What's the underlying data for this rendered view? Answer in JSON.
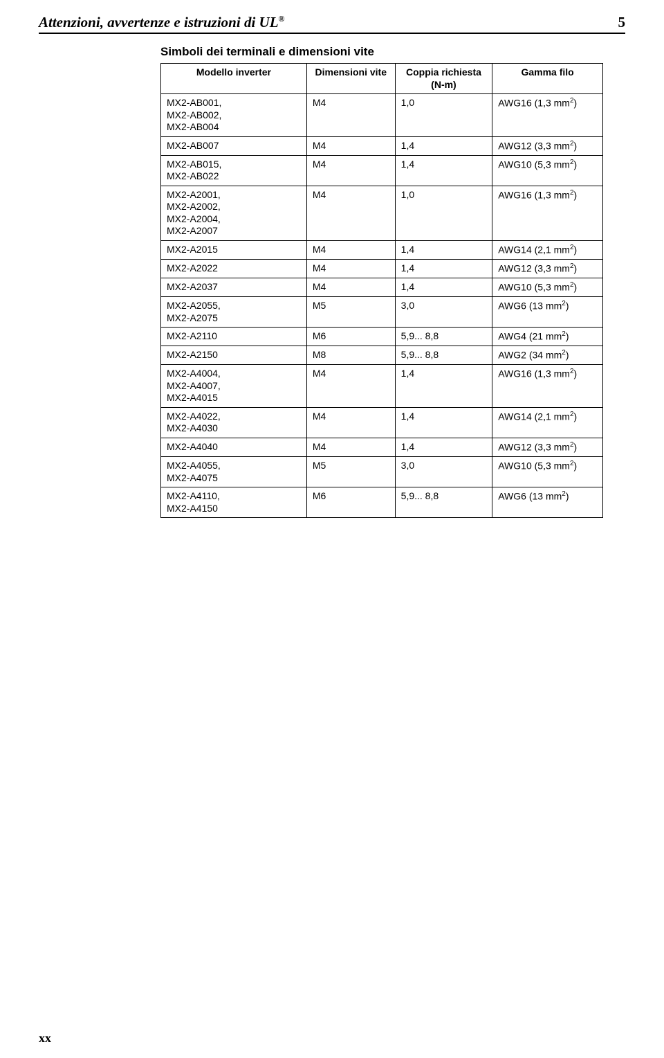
{
  "header": {
    "title_main": "Attenzioni, avvertenze e istruzioni di UL",
    "title_sup": "®",
    "page_number": "5"
  },
  "footer": {
    "mark": "xx"
  },
  "table": {
    "title": "Simboli dei terminali e dimensioni vite",
    "columns": [
      "Modello inverter",
      "Dimensioni vite",
      "Coppia richiesta (N-m)",
      "Gamma filo"
    ],
    "rows": [
      {
        "model": "MX2-AB001,\nMX2-AB002,\nMX2-AB004",
        "size": "M4",
        "torque": "1,0",
        "wire": "AWG16 (1,3 mm²)"
      },
      {
        "model": "MX2-AB007",
        "size": "M4",
        "torque": "1,4",
        "wire": "AWG12 (3,3 mm²)"
      },
      {
        "model": "MX2-AB015,\nMX2-AB022",
        "size": "M4",
        "torque": "1,4",
        "wire": "AWG10 (5,3 mm²)"
      },
      {
        "model": "MX2-A2001,\nMX2-A2002,\nMX2-A2004,\nMX2-A2007",
        "size": "M4",
        "torque": "1,0",
        "wire": "AWG16 (1,3 mm²)"
      },
      {
        "model": "MX2-A2015",
        "size": "M4",
        "torque": "1,4",
        "wire": "AWG14 (2,1 mm²)"
      },
      {
        "model": "MX2-A2022",
        "size": "M4",
        "torque": "1,4",
        "wire": "AWG12 (3,3 mm²)"
      },
      {
        "model": "MX2-A2037",
        "size": "M4",
        "torque": "1,4",
        "wire": "AWG10 (5,3 mm²)"
      },
      {
        "model": "MX2-A2055,\nMX2-A2075",
        "size": "M5",
        "torque": "3,0",
        "wire": "AWG6 (13 mm²)"
      },
      {
        "model": "MX2-A2110",
        "size": "M6",
        "torque": "5,9... 8,8",
        "wire": "AWG4 (21 mm²)"
      },
      {
        "model": "MX2-A2150",
        "size": "M8",
        "torque": "5,9... 8,8",
        "wire": "AWG2 (34 mm²)"
      },
      {
        "model": "MX2-A4004,\nMX2-A4007,\nMX2-A4015",
        "size": "M4",
        "torque": "1,4",
        "wire": "AWG16 (1,3 mm²)"
      },
      {
        "model": "MX2-A4022,\nMX2-A4030",
        "size": "M4",
        "torque": "1,4",
        "wire": "AWG14 (2,1 mm²)"
      },
      {
        "model": "MX2-A4040",
        "size": "M4",
        "torque": "1,4",
        "wire": "AWG12 (3,3 mm²)"
      },
      {
        "model": "MX2-A4055,\nMX2-A4075",
        "size": "M5",
        "torque": "3,0",
        "wire": "AWG10 (5,3 mm²)"
      },
      {
        "model": "MX2-A4110,\nMX2-A4150",
        "size": "M6",
        "torque": "5,9... 8,8",
        "wire": "AWG6 (13 mm²)"
      }
    ]
  }
}
